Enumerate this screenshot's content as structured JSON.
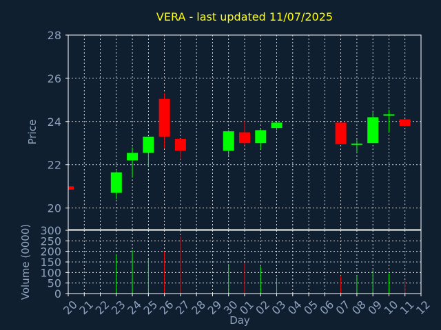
{
  "chart_data": {
    "type": "candlestick",
    "title": "VERA - last updated 11/07/2025",
    "price_panel": {
      "ylabel": "Price",
      "ylim": [
        19,
        28
      ],
      "yticks": [
        20,
        22,
        24,
        26,
        28
      ],
      "grid": true
    },
    "volume_panel": {
      "ylabel": "Volume (0000)",
      "ylim": [
        0,
        300
      ],
      "yticks": [
        0,
        50,
        100,
        150,
        200,
        250,
        300
      ],
      "grid": true
    },
    "xlabel": "Day",
    "x_ticks": [
      "20",
      "21",
      "22",
      "23",
      "24",
      "25",
      "26",
      "27",
      "28",
      "29",
      "30",
      "01",
      "02",
      "03",
      "04",
      "05",
      "06",
      "07",
      "08",
      "09",
      "10",
      "11",
      "12"
    ],
    "colors": {
      "up": "#00ff00",
      "down": "#ff0000",
      "grid": "#ffffff",
      "axis": "#ffffff",
      "background": "#0f1f30",
      "title": "#ffff00",
      "labels": "#8fa3bf"
    },
    "candles": [
      {
        "day": "20",
        "open": 21.0,
        "high": 21.0,
        "low": 20.8,
        "close": 20.85,
        "volume": 0
      },
      {
        "day": "23",
        "open": 20.7,
        "high": 21.7,
        "low": 20.4,
        "close": 21.65,
        "volume": 185
      },
      {
        "day": "24",
        "open": 22.2,
        "high": 22.8,
        "low": 21.4,
        "close": 22.55,
        "volume": 205
      },
      {
        "day": "25",
        "open": 22.55,
        "high": 23.3,
        "low": 21.9,
        "close": 23.3,
        "volume": 165
      },
      {
        "day": "26",
        "open": 25.05,
        "high": 25.3,
        "low": 22.75,
        "close": 23.3,
        "volume": 200
      },
      {
        "day": "27",
        "open": 23.2,
        "high": 23.2,
        "low": 22.25,
        "close": 22.65,
        "volume": 270
      },
      {
        "day": "30",
        "open": 22.65,
        "high": 23.6,
        "low": 22.45,
        "close": 23.55,
        "volume": 140
      },
      {
        "day": "01",
        "open": 23.5,
        "high": 24.05,
        "low": 22.9,
        "close": 23.0,
        "volume": 145
      },
      {
        "day": "02",
        "open": 23.0,
        "high": 23.65,
        "low": 22.7,
        "close": 23.6,
        "volume": 130
      },
      {
        "day": "03",
        "open": 23.7,
        "high": 24.0,
        "low": 23.6,
        "close": 23.95,
        "volume": 75
      },
      {
        "day": "07",
        "open": 23.95,
        "high": 23.95,
        "low": 22.95,
        "close": 22.95,
        "volume": 85
      },
      {
        "day": "08",
        "open": 22.95,
        "high": 23.15,
        "low": 22.55,
        "close": 22.95,
        "volume": 85
      },
      {
        "day": "09",
        "open": 23.0,
        "high": 24.45,
        "low": 23.0,
        "close": 24.2,
        "volume": 110
      },
      {
        "day": "10",
        "open": 24.3,
        "high": 24.55,
        "low": 23.5,
        "close": 24.3,
        "volume": 95
      },
      {
        "day": "11",
        "open": 24.1,
        "high": 24.1,
        "low": 23.75,
        "close": 23.8,
        "volume": 60
      }
    ]
  }
}
